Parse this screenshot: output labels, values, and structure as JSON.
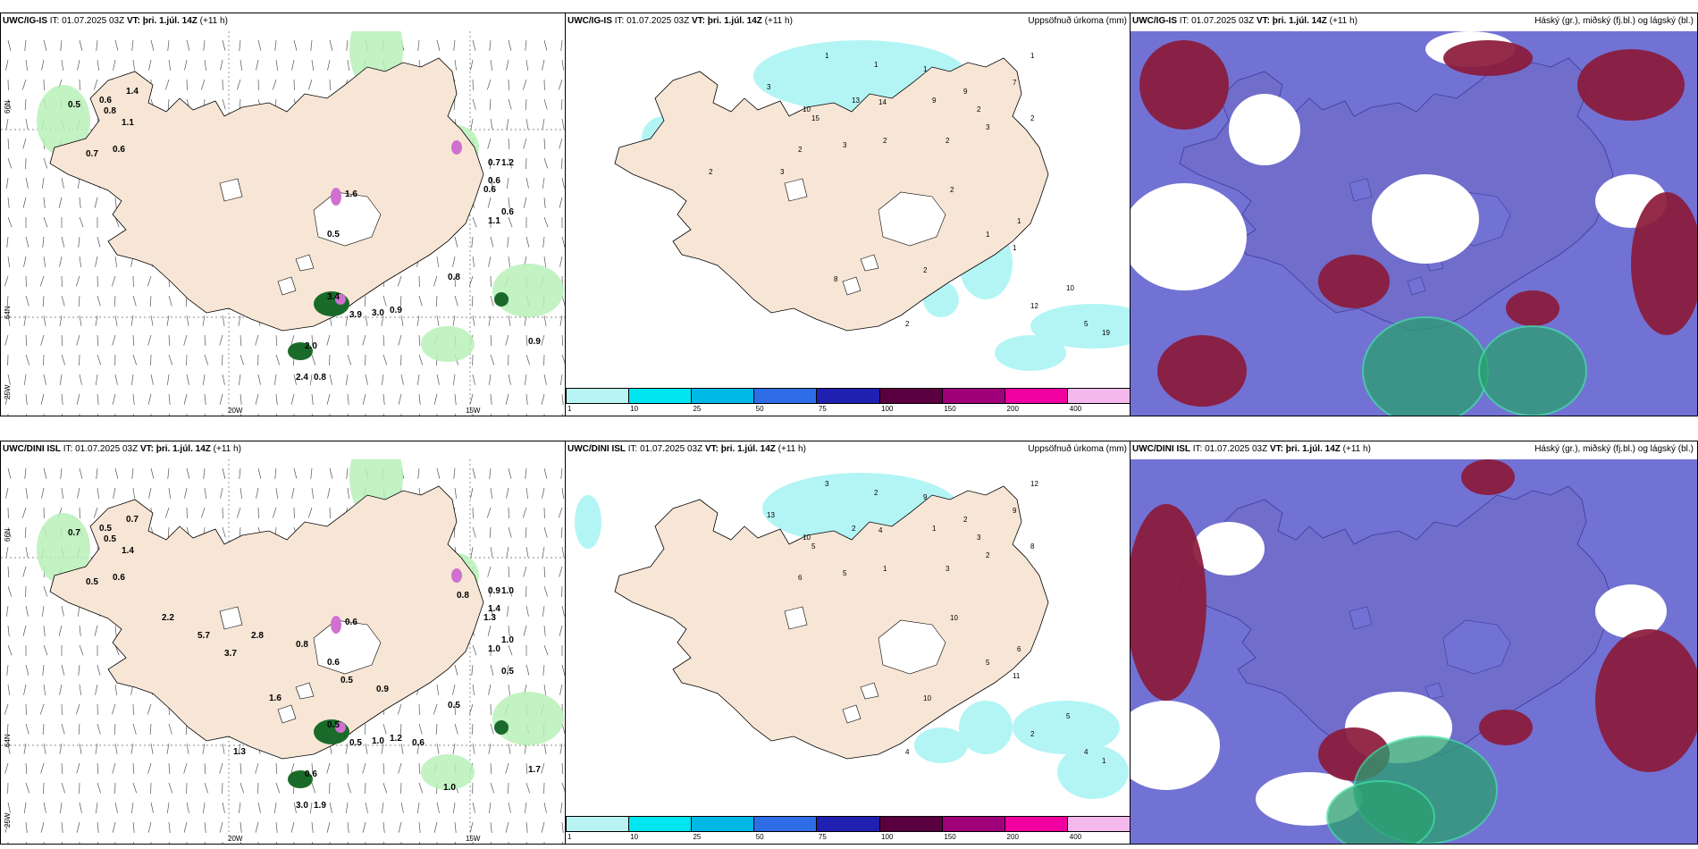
{
  "rows": [
    {
      "panels": [
        {
          "label": "UWC/IG-IS",
          "it": "IT: 01.07.2025 03Z",
          "vt_label": "VT:",
          "vt": "þri. 1.júl. 14Z",
          "lead": "(+11 h)",
          "right": ""
        },
        {
          "label": "UWC/IG-IS",
          "it": "IT: 01.07.2025 03Z",
          "vt_label": "VT:",
          "vt": "þri. 1.júl. 14Z",
          "lead": "(+11 h)",
          "right": "Uppsöfnuð úrkoma (mm)"
        },
        {
          "label": "UWC/IG-IS",
          "it": "IT: 01.07.2025 03Z",
          "vt_label": "VT:",
          "vt": "þri. 1.júl. 14Z",
          "lead": "(+11 h)",
          "right": "Háský (gr.), miðský (fj.bl.) og lágský (bl.)"
        }
      ]
    },
    {
      "panels": [
        {
          "label": "UWC/DINI ISL",
          "it": "IT: 01.07.2025 03Z",
          "vt_label": "VT:",
          "vt": "þri. 1.júl. 14Z",
          "lead": "(+11 h)",
          "right": ""
        },
        {
          "label": "UWC/DINI ISL",
          "it": "IT: 01.07.2025 03Z",
          "vt_label": "VT:",
          "vt": "þri. 1.júl. 14Z",
          "lead": "(+11 h)",
          "right": "Uppsöfnuð úrkoma (mm)"
        },
        {
          "label": "UWC/DINI ISL",
          "it": "IT: 01.07.2025 03Z",
          "vt_label": "VT:",
          "vt": "þri. 1.júl. 14Z",
          "lead": "(+11 h)",
          "right": "Háský (gr.), miðský (fj.bl.) og lágský (bl.)"
        }
      ]
    }
  ],
  "axes": {
    "lon": [
      "20W",
      "15W"
    ],
    "lat": [
      "66N",
      "64N",
      "25W"
    ]
  },
  "colorbar": {
    "ticks": [
      "1",
      "10",
      "25",
      "50",
      "75",
      "100",
      "150",
      "200",
      "400"
    ],
    "colors": [
      "#b8f4f4",
      "#00e6f0",
      "#00b8e6",
      "#2e6de6",
      "#2020b0",
      "#5a0040",
      "#a0007a",
      "#f000a0",
      "#f5b8ec"
    ]
  },
  "precip_values_top": [
    "1",
    "1",
    "1",
    "1",
    "3",
    "10",
    "15",
    "13",
    "14",
    "9",
    "9",
    "2",
    "2",
    "3",
    "2",
    "2",
    "3",
    "7",
    "2",
    "2",
    "1",
    "1",
    "2",
    "2",
    "1",
    "12",
    "5",
    "10",
    "19",
    "8",
    "3",
    "2"
  ],
  "precip_values_bottom": [
    "3",
    "2",
    "9",
    "12",
    "13",
    "10",
    "5",
    "2",
    "4",
    "1",
    "2",
    "3",
    "6",
    "5",
    "1",
    "3",
    "2",
    "9",
    "8",
    "10",
    "6",
    "11",
    "4",
    "10",
    "5",
    "2",
    "4",
    "5",
    "1"
  ],
  "gust_values_top": [
    "0.5",
    "0.6",
    "0.8",
    "1.4",
    "0.7",
    "0.6",
    "1.1",
    "1.2",
    "0.7",
    "0.6",
    "0.6",
    "0.6",
    "1.1",
    "1.6",
    "0.5",
    "0.8",
    "3.4",
    "3.9",
    "3.0",
    "2.0",
    "0.8",
    "2.4",
    "0.9",
    "0.9"
  ],
  "gust_values_bottom": [
    "0.7",
    "0.5",
    "0.5",
    "0.7",
    "0.5",
    "0.6",
    "1.4",
    "1.0",
    "0.9",
    "1.4",
    "1.3",
    "1.0",
    "1.0",
    "0.6",
    "0.6",
    "0.5",
    "0.5",
    "0.5",
    "1.0",
    "0.6",
    "1.9",
    "3.0",
    "1.7",
    "1.2",
    "0.5",
    "0.9",
    "1.6",
    "3.7",
    "0.5",
    "0.8",
    "1.3",
    "2.2",
    "5.7",
    "2.8",
    "0.8",
    "0.6",
    "1.0"
  ],
  "colors": {
    "land": "#f7e6d6",
    "precip": "#b3f5f5",
    "green": "#b8f0b8",
    "darkgreen": "#1a6b2a",
    "pink": "#d070d0",
    "cloud_high": "#8b1a3a",
    "cloud_mid": "#4a4ac8",
    "cloud_low": "#2aa070"
  }
}
